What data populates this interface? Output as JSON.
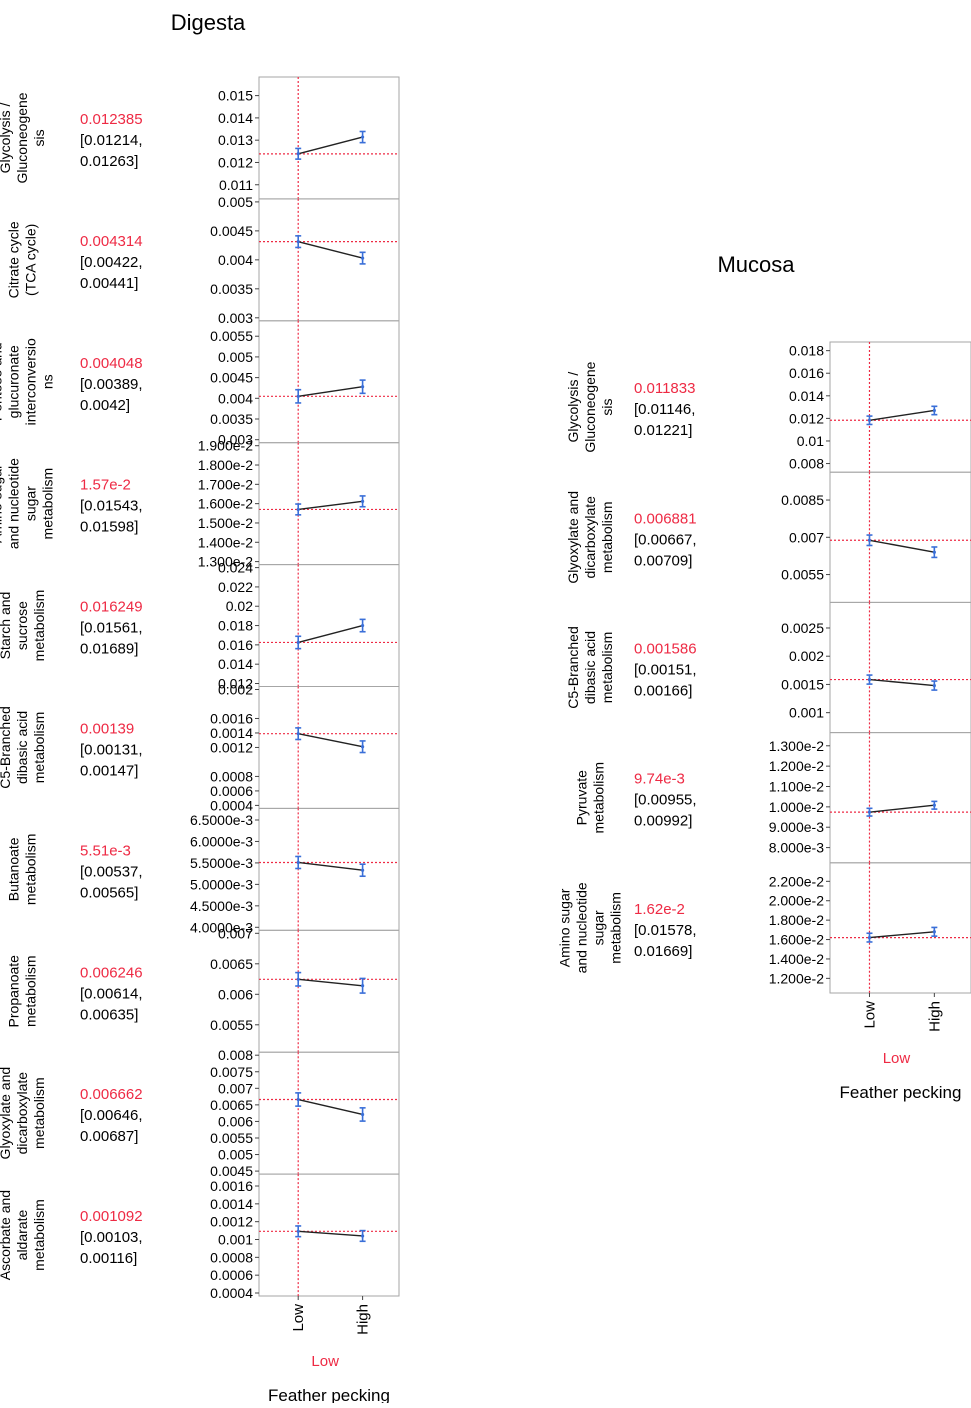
{
  "chart_data": [
    {
      "type": "line",
      "title": "Digesta",
      "xlabel": "Feather pecking",
      "categories": [
        "Low",
        "High"
      ],
      "current_level": "Low",
      "panels": [
        {
          "ylabel": [
            "Glycolysis /",
            "Gluconeogene",
            "sis"
          ],
          "current_value": "0.012385",
          "ci": [
            "[0.01214,",
            "0.01263]"
          ],
          "ref": 0.012385,
          "ylim": [
            0.0105,
            0.0157
          ],
          "ticks": [
            "0.015",
            "0.014",
            "0.013",
            "0.012",
            "0.011"
          ],
          "tick_values": [
            0.015,
            0.014,
            0.013,
            0.012,
            0.011
          ],
          "values": [
            0.01239,
            0.01314
          ],
          "err": [
            0.00024,
            0.00025
          ]
        },
        {
          "ylabel": [
            "Citrate cycle",
            "(TCA cycle)"
          ],
          "current_value": "0.004314",
          "ci": [
            "[0.00422,",
            "0.00441]"
          ],
          "ref": 0.004314,
          "ylim": [
            0.003,
            0.005
          ],
          "ticks": [
            "0.005",
            "0.0045",
            "0.004",
            "0.0035",
            "0.003"
          ],
          "tick_values": [
            0.005,
            0.0045,
            0.004,
            0.0035,
            0.003
          ],
          "values": [
            0.004314,
            0.00403
          ],
          "err": [
            0.0001,
            0.0001
          ]
        },
        {
          "ylabel": [
            "Pentose and",
            "glucuronate",
            "interconversio",
            "ns"
          ],
          "current_value": "0.004048",
          "ci": [
            "[0.00389,",
            "0.0042]"
          ],
          "ref": 0.004048,
          "ylim": [
            0.003,
            0.0058
          ],
          "ticks": [
            "0.0055",
            "0.005",
            "0.0045",
            "0.004",
            "0.0035",
            "0.003"
          ],
          "tick_values": [
            0.0055,
            0.005,
            0.0045,
            0.004,
            0.0035,
            0.003
          ],
          "values": [
            0.004048,
            0.00428
          ],
          "err": [
            0.00016,
            0.00016
          ]
        },
        {
          "ylabel": [
            "Amino sugar",
            "and nucleotide",
            "sugar",
            "metabolism"
          ],
          "current_value": "1.57e-2",
          "ci": [
            "[0.01543,",
            "0.01598]"
          ],
          "ref": 0.0157,
          "ylim": [
            0.013,
            0.019
          ],
          "ticks": [
            "1.900e-2",
            "1.800e-2",
            "1.700e-2",
            "1.600e-2",
            "1.500e-2",
            "1.400e-2",
            "1.300e-2"
          ],
          "tick_values": [
            0.019,
            0.018,
            0.017,
            0.016,
            0.015,
            0.014,
            0.013
          ],
          "values": [
            0.0157,
            0.01612
          ],
          "err": [
            0.00028,
            0.00028
          ]
        },
        {
          "ylabel": [
            "Starch and",
            "sucrose",
            "metabolism"
          ],
          "current_value": "0.016249",
          "ci": [
            "[0.01561,",
            "0.01689]"
          ],
          "ref": 0.016249,
          "ylim": [
            0.012,
            0.024
          ],
          "ticks": [
            "0.024",
            "0.022",
            "0.02",
            "0.018",
            "0.016",
            "0.014",
            "0.012"
          ],
          "tick_values": [
            0.024,
            0.022,
            0.02,
            0.018,
            0.016,
            0.014,
            0.012
          ],
          "values": [
            0.016249,
            0.018
          ],
          "err": [
            0.00064,
            0.00064
          ]
        },
        {
          "ylabel": [
            "C5-Branched",
            "dibasic acid",
            "metabolism"
          ],
          "current_value": "0.00139",
          "ci": [
            "[0.00131,",
            "0.00147]"
          ],
          "ref": 0.00139,
          "ylim": [
            0.0004,
            0.002
          ],
          "ticks": [
            "0.002",
            "0.0016",
            "0.0014",
            "0.0012",
            "0.0008",
            "0.0006",
            "0.0004"
          ],
          "tick_values": [
            0.002,
            0.0016,
            0.0014,
            0.0012,
            0.0008,
            0.0006,
            0.0004
          ],
          "values": [
            0.00139,
            0.00121
          ],
          "err": [
            8e-05,
            8e-05
          ]
        },
        {
          "ylabel": [
            "Butanoate",
            "metabolism"
          ],
          "current_value": "5.51e-3",
          "ci": [
            "[0.00537,",
            "0.00565]"
          ],
          "ref": 0.00551,
          "ylim": [
            0.004,
            0.0067
          ],
          "ticks": [
            "6.5000e-3",
            "6.0000e-3",
            "5.5000e-3",
            "5.0000e-3",
            "4.5000e-3",
            "4.0000e-3"
          ],
          "tick_values": [
            0.0065,
            0.006,
            0.0055,
            0.005,
            0.0045,
            0.004
          ],
          "values": [
            0.00551,
            0.00533
          ],
          "err": [
            0.00014,
            0.00014
          ]
        },
        {
          "ylabel": [
            "Propanoate",
            "metabolism"
          ],
          "current_value": "0.006246",
          "ci": [
            "[0.00614,",
            "0.00635]"
          ],
          "ref": 0.006246,
          "ylim": [
            0.0051,
            0.007
          ],
          "ticks": [
            "0.007",
            "0.0065",
            "0.006",
            "0.0055"
          ],
          "tick_values": [
            0.007,
            0.0065,
            0.006,
            0.0055
          ],
          "values": [
            0.006246,
            0.00614
          ],
          "err": [
            0.00011,
            0.00012
          ]
        },
        {
          "ylabel": [
            "Glyoxylate and",
            "dicarboxylate",
            "metabolism"
          ],
          "current_value": "0.006662",
          "ci": [
            "[0.00646,",
            "0.00687]"
          ],
          "ref": 0.006662,
          "ylim": [
            0.0045,
            0.008
          ],
          "ticks": [
            "0.008",
            "0.0075",
            "0.007",
            "0.0065",
            "0.006",
            "0.0055",
            "0.005",
            "0.0045"
          ],
          "tick_values": [
            0.008,
            0.0075,
            0.007,
            0.0065,
            0.006,
            0.0055,
            0.005,
            0.0045
          ],
          "values": [
            0.006662,
            0.00621
          ],
          "err": [
            0.0002,
            0.0002
          ]
        },
        {
          "ylabel": [
            "Ascorbate and",
            "aldarate",
            "metabolism"
          ],
          "current_value": "0.001092",
          "ci": [
            "[0.00103,",
            "0.00116]"
          ],
          "ref": 0.001092,
          "ylim": [
            0.0004,
            0.0017
          ],
          "ticks": [
            "0.0016",
            "0.0014",
            "0.0012",
            "0.001",
            "0.0008",
            "0.0006",
            "0.0004"
          ],
          "tick_values": [
            0.0016,
            0.0014,
            0.0012,
            0.001,
            0.0008,
            0.0006,
            0.0004
          ],
          "values": [
            0.001092,
            0.00104
          ],
          "err": [
            6e-05,
            6e-05
          ]
        }
      ]
    },
    {
      "type": "line",
      "title": "Mucosa",
      "xlabel": "Feather pecking",
      "categories": [
        "Low",
        "High"
      ],
      "current_level": "Low",
      "panels": [
        {
          "ylabel": [
            "Glycolysis /",
            "Gluconeogene",
            "sis"
          ],
          "current_value": "0.011833",
          "ci": [
            "[0.01146,",
            "0.01221]"
          ],
          "ref": 0.011833,
          "ylim": [
            0.0075,
            0.0185
          ],
          "ticks": [
            "0.018",
            "0.016",
            "0.014",
            "0.012",
            "0.01",
            "0.008"
          ],
          "tick_values": [
            0.018,
            0.016,
            0.014,
            0.012,
            0.01,
            0.008
          ],
          "values": [
            0.011833,
            0.0127
          ],
          "err": [
            0.00037,
            0.00037
          ]
        },
        {
          "ylabel": [
            "Glyoxylate and",
            "dicarboxylate",
            "metabolism"
          ],
          "current_value": "0.006881",
          "ci": [
            "[0.00667,",
            "0.00709]"
          ],
          "ref": 0.006881,
          "ylim": [
            0.0045,
            0.0095
          ],
          "ticks": [
            "0.0085",
            "0.007",
            "0.0055"
          ],
          "tick_values": [
            0.0085,
            0.007,
            0.0055
          ],
          "values": [
            0.006881,
            0.0064
          ],
          "err": [
            0.00021,
            0.00021
          ]
        },
        {
          "ylabel": [
            "C5-Branched",
            "dibasic acid",
            "metabolism"
          ],
          "current_value": "0.001586",
          "ci": [
            "[0.00151,",
            "0.00166]"
          ],
          "ref": 0.001586,
          "ylim": [
            0.0007,
            0.0029
          ],
          "ticks": [
            "0.0025",
            "0.002",
            "0.0015",
            "0.001"
          ],
          "tick_values": [
            0.0025,
            0.002,
            0.0015,
            0.001
          ],
          "values": [
            0.001586,
            0.00148
          ],
          "err": [
            8e-05,
            8e-05
          ]
        },
        {
          "ylabel": [
            "Pyruvate",
            "metabolism"
          ],
          "current_value": "9.74e-3",
          "ci": [
            "[0.00955,",
            "0.00992]"
          ],
          "ref": 0.00974,
          "ylim": [
            0.0074,
            0.0135
          ],
          "ticks": [
            "1.300e-2",
            "1.200e-2",
            "1.100e-2",
            "1.000e-2",
            "9.000e-3",
            "8.000e-3"
          ],
          "tick_values": [
            0.013,
            0.012,
            0.011,
            0.01,
            0.009,
            0.008
          ],
          "values": [
            0.00974,
            0.01008
          ],
          "err": [
            0.00019,
            0.00019
          ]
        },
        {
          "ylabel": [
            "Amino sugar",
            "and nucleotide",
            "sugar",
            "metabolism"
          ],
          "current_value": "1.62e-2",
          "ci": [
            "[0.01578,",
            "0.01669]"
          ],
          "ref": 0.0162,
          "ylim": [
            0.0108,
            0.0236
          ],
          "ticks": [
            "2.200e-2",
            "2.000e-2",
            "1.800e-2",
            "1.600e-2",
            "1.400e-2",
            "1.200e-2"
          ],
          "tick_values": [
            0.022,
            0.02,
            0.018,
            0.016,
            0.014,
            0.012
          ],
          "values": [
            0.0162,
            0.0168
          ],
          "err": [
            0.00045,
            0.00045
          ]
        }
      ]
    }
  ],
  "colors": {
    "accent": "#ee2a44",
    "error_bar": "#3a6fd8",
    "line": "#222222",
    "frame": "#a6a6a6"
  }
}
